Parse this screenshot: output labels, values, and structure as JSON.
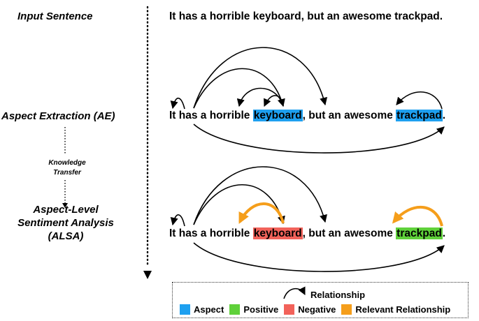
{
  "labels": {
    "input": "Input Sentence",
    "ae": "Aspect Extraction (AE)",
    "knowledge": [
      "Knowledge",
      "Transfer"
    ],
    "alsa": [
      "Aspect-Level",
      "Sentiment Analysis",
      "(ALSA)"
    ]
  },
  "sentence": {
    "input": "It has a horrible keyboard, but an awesome trackpad.",
    "prefix": "It has a horrible ",
    "aspect1": "keyboard",
    "middle": ", but an awesome ",
    "aspect2": "trackpad",
    "suffix": "."
  },
  "legend": {
    "relationship": "Relationship",
    "items": [
      {
        "label": "Aspect",
        "color": "#1ea0f0"
      },
      {
        "label": "Positive",
        "color": "#5fd13a"
      },
      {
        "label": "Negative",
        "color": "#f2625a"
      },
      {
        "label": "Relevant Relationship",
        "color": "#f59e1b"
      }
    ]
  },
  "colors": {
    "relevant_arc": "#f59e1b",
    "arc": "#000000"
  }
}
